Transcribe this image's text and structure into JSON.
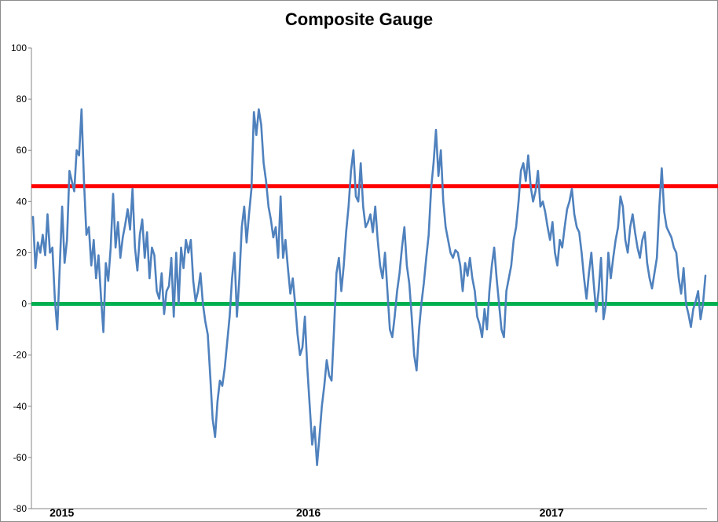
{
  "chart_data": {
    "type": "line",
    "title": "Composite Gauge",
    "xlabel": "",
    "ylabel": "",
    "ylim": [
      -80,
      100
    ],
    "yticks": [
      100,
      80,
      60,
      40,
      20,
      0,
      -20,
      -40,
      -60,
      -80
    ],
    "ytick_labels": [
      "100",
      "80",
      "60",
      "40",
      "20",
      "0",
      "-20",
      "-40",
      "-60",
      "-80"
    ],
    "x_labels": [
      "2015",
      "2016",
      "2017"
    ],
    "grid": false,
    "legend": "none",
    "reference_lines": [
      {
        "value": 46,
        "color": "#ff0000"
      },
      {
        "value": 0,
        "color": "#00b050"
      }
    ],
    "series": [
      {
        "color": "#4f81bd",
        "values": [
          34,
          14,
          24,
          20,
          27,
          19,
          35,
          20,
          22,
          2,
          -10,
          14,
          38,
          16,
          25,
          52,
          48,
          44,
          60,
          58,
          76,
          48,
          27,
          30,
          15,
          25,
          10,
          19,
          3,
          -11,
          16,
          9,
          22,
          43,
          22,
          32,
          18,
          26,
          31,
          37,
          29,
          45,
          22,
          13,
          27,
          33,
          18,
          28,
          10,
          22,
          19,
          5,
          2,
          12,
          -4,
          5,
          7,
          18,
          -5,
          20,
          0,
          22,
          14,
          25,
          20,
          25,
          9,
          1,
          5,
          12,
          0,
          -7,
          -12,
          -28,
          -45,
          -52,
          -38,
          -30,
          -32,
          -25,
          -15,
          -5,
          10,
          20,
          -5,
          10,
          30,
          38,
          24,
          35,
          45,
          75,
          66,
          76,
          70,
          55,
          48,
          38,
          33,
          26,
          30,
          18,
          42,
          18,
          25,
          14,
          4,
          10,
          0,
          -12,
          -20,
          -17,
          -5,
          -25,
          -40,
          -55,
          -48,
          -63,
          -52,
          -40,
          -32,
          -22,
          -28,
          -30,
          -10,
          12,
          18,
          5,
          15,
          28,
          38,
          52,
          60,
          42,
          40,
          55,
          38,
          30,
          32,
          35,
          28,
          38,
          25,
          15,
          10,
          20,
          5,
          -10,
          -13,
          -5,
          5,
          12,
          22,
          30,
          15,
          8,
          -5,
          -20,
          -26,
          -10,
          0,
          8,
          18,
          27,
          45,
          55,
          68,
          50,
          60,
          40,
          30,
          25,
          20,
          18,
          21,
          20,
          15,
          5,
          16,
          11,
          18,
          10,
          5,
          -5,
          -8,
          -13,
          -2,
          -10,
          5,
          15,
          22,
          10,
          0,
          -10,
          -13,
          5,
          10,
          15,
          25,
          30,
          40,
          52,
          55,
          48,
          58,
          46,
          40,
          44,
          52,
          38,
          40,
          36,
          30,
          25,
          32,
          20,
          15,
          25,
          22,
          30,
          37,
          40,
          45,
          35,
          30,
          28,
          20,
          10,
          2,
          12,
          20,
          8,
          -3,
          5,
          18,
          -6,
          0,
          20,
          10,
          18,
          25,
          30,
          42,
          38,
          25,
          20,
          30,
          35,
          28,
          22,
          18,
          25,
          28,
          16,
          10,
          6,
          12,
          18,
          38,
          53,
          36,
          30,
          28,
          26,
          22,
          20,
          10,
          4,
          14,
          0,
          -4,
          -9,
          -2,
          1,
          5,
          -6,
          0,
          11
        ]
      }
    ]
  }
}
